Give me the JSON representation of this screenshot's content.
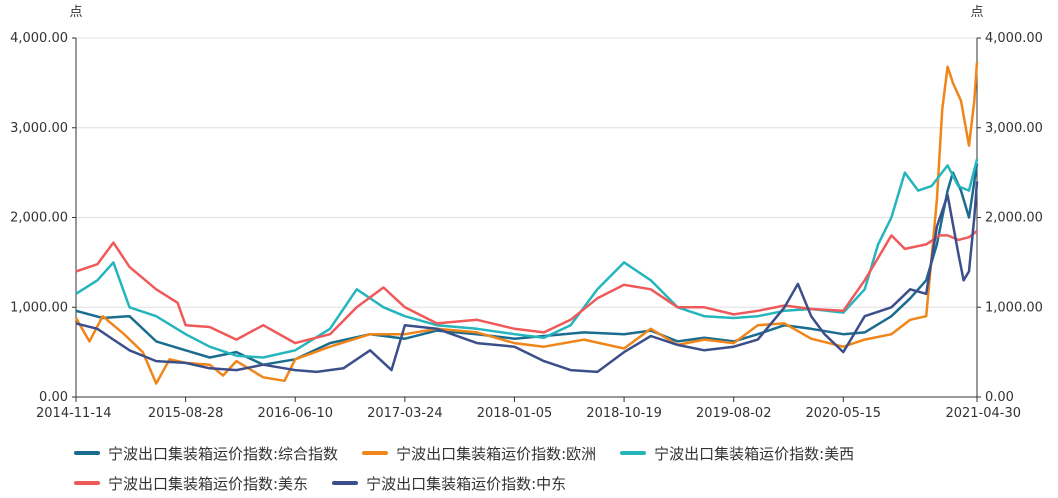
{
  "chart_data": {
    "type": "line",
    "y_unit_left": "点",
    "y_unit_right": "点",
    "ylim": [
      0,
      4000
    ],
    "y_ticks": [
      "0.00",
      "1,000.00",
      "2,000.00",
      "3,000.00",
      "4,000.00"
    ],
    "y_tick_values": [
      0,
      1000,
      2000,
      3000,
      4000
    ],
    "x_ticks": [
      "2014-11-14",
      "2015-08-28",
      "2016-06-10",
      "2017-03-24",
      "2018-01-05",
      "2018-10-19",
      "2019-08-02",
      "2020-05-15",
      "2021-04-30"
    ],
    "x_ticks_weeks_from_start": [
      0,
      41,
      82,
      123,
      164,
      205,
      246,
      287,
      337
    ],
    "grid": true,
    "legend_position": "bottom",
    "series": [
      {
        "name": "宁波出口集装箱运价指数:综合指数",
        "color": "#1a6d8f",
        "points": [
          [
            0,
            960
          ],
          [
            10,
            880
          ],
          [
            20,
            900
          ],
          [
            30,
            620
          ],
          [
            41,
            520
          ],
          [
            50,
            440
          ],
          [
            60,
            500
          ],
          [
            70,
            360
          ],
          [
            82,
            420
          ],
          [
            95,
            600
          ],
          [
            110,
            700
          ],
          [
            123,
            650
          ],
          [
            135,
            740
          ],
          [
            150,
            700
          ],
          [
            164,
            650
          ],
          [
            175,
            680
          ],
          [
            190,
            720
          ],
          [
            205,
            700
          ],
          [
            215,
            740
          ],
          [
            225,
            620
          ],
          [
            235,
            660
          ],
          [
            246,
            620
          ],
          [
            255,
            700
          ],
          [
            265,
            800
          ],
          [
            275,
            760
          ],
          [
            287,
            700
          ],
          [
            295,
            720
          ],
          [
            305,
            900
          ],
          [
            312,
            1100
          ],
          [
            318,
            1300
          ],
          [
            322,
            1700
          ],
          [
            326,
            2300
          ],
          [
            328,
            2500
          ],
          [
            331,
            2300
          ],
          [
            334,
            2000
          ],
          [
            337,
            2600
          ]
        ]
      },
      {
        "name": "宁波出口集装箱运价指数:欧洲",
        "color": "#f08519",
        "points": [
          [
            0,
            880
          ],
          [
            5,
            620
          ],
          [
            10,
            900
          ],
          [
            18,
            700
          ],
          [
            25,
            500
          ],
          [
            30,
            150
          ],
          [
            35,
            420
          ],
          [
            41,
            380
          ],
          [
            50,
            360
          ],
          [
            55,
            240
          ],
          [
            60,
            400
          ],
          [
            70,
            220
          ],
          [
            78,
            180
          ],
          [
            82,
            420
          ],
          [
            95,
            560
          ],
          [
            110,
            700
          ],
          [
            123,
            700
          ],
          [
            135,
            760
          ],
          [
            150,
            720
          ],
          [
            164,
            600
          ],
          [
            175,
            560
          ],
          [
            190,
            640
          ],
          [
            205,
            540
          ],
          [
            215,
            760
          ],
          [
            225,
            580
          ],
          [
            235,
            640
          ],
          [
            246,
            600
          ],
          [
            255,
            800
          ],
          [
            265,
            820
          ],
          [
            275,
            650
          ],
          [
            287,
            560
          ],
          [
            295,
            640
          ],
          [
            305,
            700
          ],
          [
            312,
            860
          ],
          [
            318,
            900
          ],
          [
            322,
            2200
          ],
          [
            324,
            3200
          ],
          [
            326,
            3680
          ],
          [
            328,
            3500
          ],
          [
            331,
            3300
          ],
          [
            334,
            2800
          ],
          [
            336,
            3300
          ],
          [
            337,
            3730
          ]
        ]
      },
      {
        "name": "宁波出口集装箱运价指数:美西",
        "color": "#25b5bd",
        "points": [
          [
            0,
            1150
          ],
          [
            8,
            1300
          ],
          [
            14,
            1500
          ],
          [
            20,
            1000
          ],
          [
            30,
            900
          ],
          [
            41,
            700
          ],
          [
            50,
            560
          ],
          [
            60,
            460
          ],
          [
            70,
            440
          ],
          [
            82,
            520
          ],
          [
            95,
            760
          ],
          [
            105,
            1200
          ],
          [
            115,
            1000
          ],
          [
            123,
            900
          ],
          [
            135,
            800
          ],
          [
            150,
            760
          ],
          [
            164,
            700
          ],
          [
            175,
            660
          ],
          [
            185,
            800
          ],
          [
            195,
            1200
          ],
          [
            205,
            1500
          ],
          [
            215,
            1300
          ],
          [
            225,
            1000
          ],
          [
            235,
            900
          ],
          [
            246,
            880
          ],
          [
            255,
            900
          ],
          [
            265,
            960
          ],
          [
            275,
            980
          ],
          [
            287,
            940
          ],
          [
            295,
            1200
          ],
          [
            300,
            1700
          ],
          [
            305,
            2000
          ],
          [
            310,
            2500
          ],
          [
            315,
            2300
          ],
          [
            320,
            2350
          ],
          [
            326,
            2580
          ],
          [
            330,
            2350
          ],
          [
            334,
            2300
          ],
          [
            337,
            2650
          ]
        ]
      },
      {
        "name": "宁波出口集装箱运价指数:美东",
        "color": "#ee5a5a",
        "points": [
          [
            0,
            1400
          ],
          [
            8,
            1480
          ],
          [
            14,
            1720
          ],
          [
            20,
            1450
          ],
          [
            30,
            1200
          ],
          [
            38,
            1050
          ],
          [
            41,
            800
          ],
          [
            50,
            780
          ],
          [
            60,
            640
          ],
          [
            70,
            800
          ],
          [
            82,
            600
          ],
          [
            95,
            700
          ],
          [
            105,
            1000
          ],
          [
            115,
            1220
          ],
          [
            123,
            1000
          ],
          [
            135,
            820
          ],
          [
            150,
            860
          ],
          [
            164,
            760
          ],
          [
            175,
            720
          ],
          [
            185,
            860
          ],
          [
            195,
            1100
          ],
          [
            205,
            1250
          ],
          [
            215,
            1200
          ],
          [
            225,
            1000
          ],
          [
            235,
            1000
          ],
          [
            246,
            920
          ],
          [
            255,
            960
          ],
          [
            265,
            1020
          ],
          [
            275,
            980
          ],
          [
            287,
            960
          ],
          [
            295,
            1300
          ],
          [
            300,
            1550
          ],
          [
            305,
            1800
          ],
          [
            310,
            1650
          ],
          [
            318,
            1700
          ],
          [
            323,
            1800
          ],
          [
            326,
            1800
          ],
          [
            330,
            1750
          ],
          [
            334,
            1780
          ],
          [
            337,
            1850
          ]
        ]
      },
      {
        "name": "宁波出口集装箱运价指数:中东",
        "color": "#3d4f8a",
        "points": [
          [
            0,
            820
          ],
          [
            8,
            760
          ],
          [
            14,
            640
          ],
          [
            20,
            520
          ],
          [
            30,
            400
          ],
          [
            41,
            380
          ],
          [
            50,
            320
          ],
          [
            60,
            300
          ],
          [
            70,
            360
          ],
          [
            78,
            320
          ],
          [
            82,
            300
          ],
          [
            90,
            280
          ],
          [
            100,
            320
          ],
          [
            110,
            520
          ],
          [
            118,
            300
          ],
          [
            123,
            800
          ],
          [
            135,
            760
          ],
          [
            150,
            600
          ],
          [
            164,
            560
          ],
          [
            175,
            400
          ],
          [
            185,
            300
          ],
          [
            195,
            280
          ],
          [
            205,
            500
          ],
          [
            215,
            680
          ],
          [
            225,
            580
          ],
          [
            235,
            520
          ],
          [
            246,
            560
          ],
          [
            255,
            640
          ],
          [
            265,
            1000
          ],
          [
            270,
            1260
          ],
          [
            275,
            900
          ],
          [
            280,
            700
          ],
          [
            287,
            500
          ],
          [
            295,
            900
          ],
          [
            305,
            1000
          ],
          [
            312,
            1200
          ],
          [
            318,
            1150
          ],
          [
            322,
            1900
          ],
          [
            326,
            2250
          ],
          [
            330,
            1600
          ],
          [
            332,
            1300
          ],
          [
            334,
            1400
          ],
          [
            336,
            2000
          ],
          [
            337,
            2400
          ]
        ]
      }
    ]
  }
}
